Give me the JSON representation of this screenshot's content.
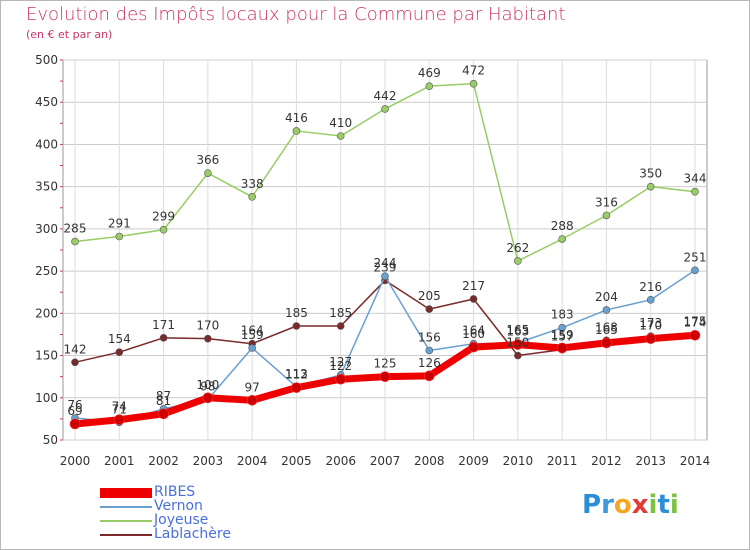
{
  "title": "Evolution des Impôts locaux pour la Commune par Habitant",
  "subtitle": "(en € et par an)",
  "brand": {
    "text": "Proxiti",
    "letters": [
      "P",
      "r",
      "o",
      "x",
      "i",
      "t",
      "i"
    ],
    "colors": [
      "#2a8fd6",
      "#3a9be0",
      "#f5a623",
      "#e53935",
      "#7cc242",
      "#2a8fd6",
      "#7cc242"
    ]
  },
  "chart_data": {
    "type": "line",
    "x": [
      "2000",
      "2001",
      "2002",
      "2003",
      "2004",
      "2005",
      "2006",
      "2007",
      "2008",
      "2009",
      "2010",
      "2011",
      "2012",
      "2013",
      "2014"
    ],
    "ylim": [
      50,
      500
    ],
    "yticks": [
      "50",
      "100",
      "150",
      "200",
      "250",
      "300",
      "350",
      "400",
      "450",
      "500"
    ],
    "grid": true,
    "legend_position": "bottom-left",
    "series": [
      {
        "name": "RIBES",
        "color": "#ee0000",
        "values": [
          69,
          74,
          81,
          100,
          97,
          112,
          122,
          125,
          126,
          160,
          163,
          159,
          165,
          170,
          174
        ],
        "labels": [
          "69",
          "74",
          "81",
          "100",
          "97",
          "112",
          "122",
          "125",
          "126",
          "160",
          "163",
          "159",
          "165",
          "170",
          "174"
        ]
      },
      {
        "name": "Vernon",
        "color": "#6aa0d0",
        "values": [
          76,
          71,
          87,
          98,
          159,
          113,
          127,
          244,
          156,
          164,
          165,
          183,
          204,
          216,
          251
        ],
        "labels": [
          "76",
          "71",
          "87",
          "98",
          "159",
          "113",
          "127",
          "244",
          "156",
          "164",
          "165",
          "183",
          "204",
          "216",
          "251"
        ]
      },
      {
        "name": "Joyeuse",
        "color": "#99cc66",
        "values": [
          285,
          291,
          299,
          366,
          338,
          416,
          410,
          442,
          469,
          472,
          262,
          288,
          316,
          350,
          344
        ],
        "labels": [
          "285",
          "291",
          "299",
          "366",
          "338",
          "416",
          "410",
          "442",
          "469",
          "472",
          "262",
          "288",
          "316",
          "350",
          "344"
        ]
      },
      {
        "name": "Lablachère",
        "color": "#7a2a2a",
        "values": [
          142,
          154,
          171,
          170,
          164,
          185,
          185,
          239,
          205,
          217,
          150,
          157,
          168,
          173,
          175
        ],
        "labels": [
          "142",
          "154",
          "171",
          "170",
          "164",
          "185",
          "185",
          "239",
          "205",
          "217",
          "150",
          "157",
          "168",
          "173",
          "175"
        ]
      }
    ]
  }
}
